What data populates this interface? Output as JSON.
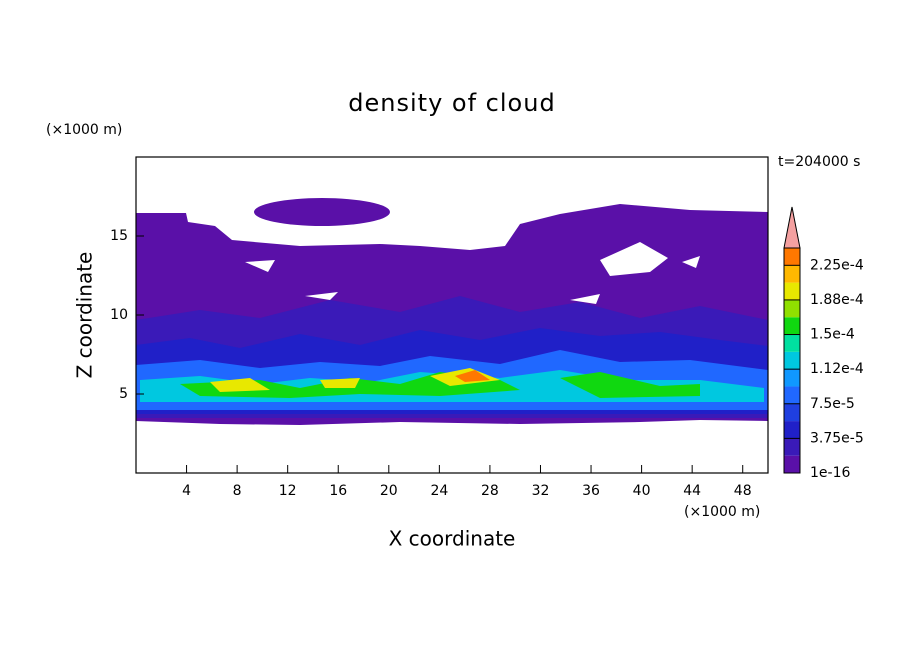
{
  "chart_data": {
    "type": "contour",
    "title": "density of cloud",
    "xlabel": "X coordinate",
    "ylabel": "Z coordinate",
    "xunit": "(×1000 m)",
    "yunit": "(×1000 m)",
    "annotation": "t=204000 s",
    "xlim": [
      0,
      50
    ],
    "xticks": [
      4,
      8,
      12,
      16,
      20,
      24,
      28,
      32,
      36,
      40,
      44,
      48
    ],
    "ylim": [
      0,
      20
    ],
    "yticks": [
      5,
      10,
      15
    ],
    "colorbar": {
      "lim": [
        0,
        0.00024375
      ],
      "colors": [
        "#5a10a8",
        "#3a1ab8",
        "#2020c8",
        "#1f3fe0",
        "#2068ff",
        "#1098ff",
        "#00c8e0",
        "#00e0a0",
        "#10d810",
        "#90e000",
        "#e8e800",
        "#ffb800",
        "#ff7800"
      ],
      "ticks": [
        {
          "value": 1e-16,
          "label": "1e-16"
        },
        {
          "value": 3.75e-05,
          "label": "3.75e-5"
        },
        {
          "value": 7.5e-05,
          "label": "7.5e-5"
        },
        {
          "value": 0.0001125,
          "label": "1.12e-4"
        },
        {
          "value": 0.00015,
          "label": "1.5e-4"
        },
        {
          "value": 0.0001875,
          "label": "1.88e-4"
        },
        {
          "value": 0.000225,
          "label": "2.25e-4"
        }
      ],
      "over_color": "#f4a0a0"
    }
  }
}
